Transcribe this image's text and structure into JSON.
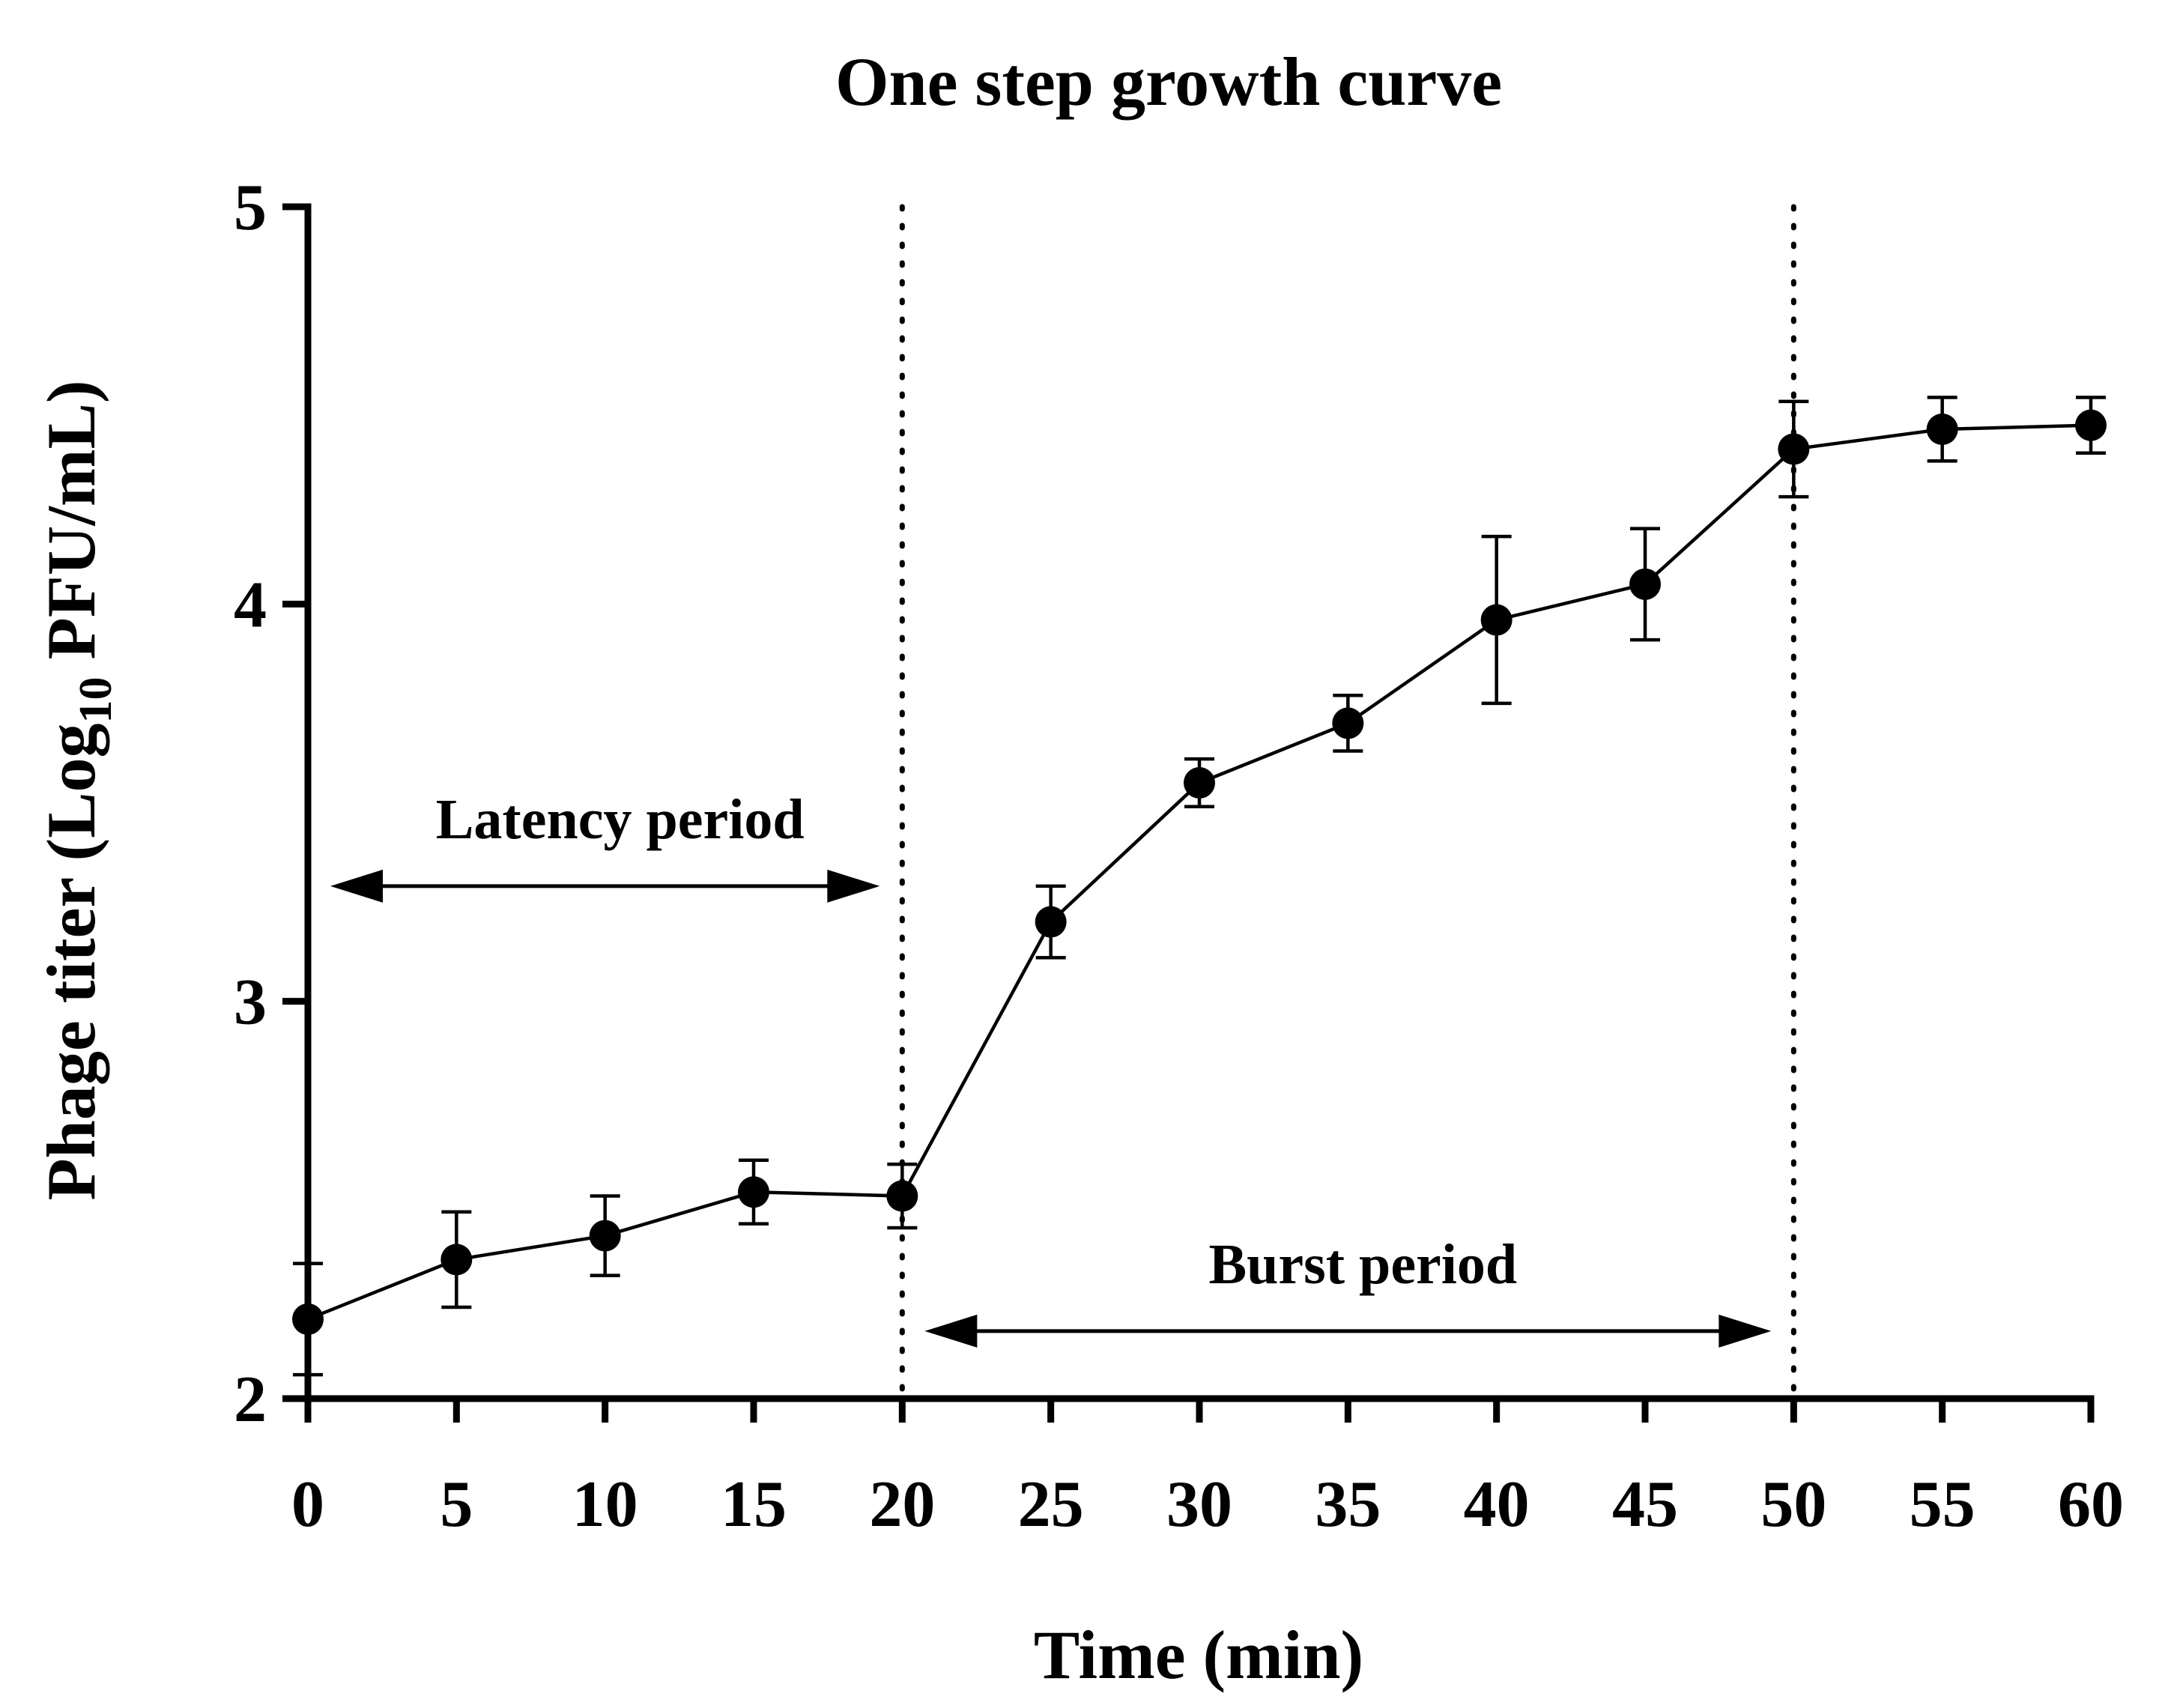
{
  "chart_data": {
    "type": "line",
    "title": "One step growth curve",
    "xlabel": "Time (min)",
    "ylabel": {
      "prefix": "Phage titer (Log",
      "subscript": "10",
      "suffix": " PFU/mL)"
    },
    "xlim": [
      0,
      60
    ],
    "ylim": [
      2,
      5
    ],
    "xticks": [
      0,
      5,
      10,
      15,
      20,
      25,
      30,
      35,
      40,
      45,
      50,
      55,
      60
    ],
    "yticks": [
      2,
      3,
      4,
      5
    ],
    "grid": false,
    "series": [
      {
        "name": "Phage titer",
        "x": [
          0,
          5,
          10,
          15,
          20,
          25,
          30,
          35,
          40,
          45,
          50,
          55,
          60
        ],
        "y": [
          2.2,
          2.35,
          2.41,
          2.52,
          2.51,
          3.2,
          3.55,
          3.7,
          3.96,
          4.05,
          4.39,
          4.44,
          4.45
        ],
        "error": [
          0.14,
          0.12,
          0.1,
          0.08,
          0.08,
          0.09,
          0.06,
          0.07,
          0.21,
          0.14,
          0.12,
          0.08,
          0.07
        ]
      }
    ],
    "reference_lines": [
      20,
      50
    ],
    "annotations": [
      {
        "label": "Latency period",
        "from": 0,
        "to": 20
      },
      {
        "label": "Burst period",
        "from": 20,
        "to": 50
      }
    ]
  }
}
